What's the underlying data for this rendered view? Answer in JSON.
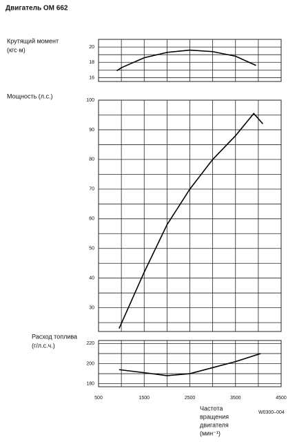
{
  "title": "Двигатель ОМ 662",
  "code": "W0300–004",
  "chart_data": [
    {
      "type": "line",
      "ylabel": "Крутящий момент",
      "yunit": "(кгс·м)",
      "xlim": [
        500,
        4500
      ],
      "ylim": [
        15.5,
        21
      ],
      "yticks": [
        16,
        18,
        20
      ],
      "minor_yticks": [
        17,
        19
      ],
      "series": [
        {
          "name": "Крутящий момент",
          "color": "#000000",
          "x": [
            900,
            1000,
            1500,
            2000,
            2500,
            3000,
            3500,
            3950
          ],
          "values": [
            16.9,
            17.3,
            18.6,
            19.3,
            19.6,
            19.4,
            18.8,
            17.6
          ]
        }
      ]
    },
    {
      "type": "line",
      "ylabel": "Мощность (л.с.)",
      "xlim": [
        500,
        4500
      ],
      "ylim": [
        22,
        100
      ],
      "yticks": [
        30,
        40,
        50,
        60,
        70,
        80,
        90,
        100
      ],
      "minor_yticks": [
        25,
        35,
        45,
        55,
        65,
        75,
        85,
        95
      ],
      "series": [
        {
          "name": "Мощность",
          "color": "#000000",
          "x": [
            950,
            1500,
            2000,
            2500,
            3000,
            3500,
            3900,
            4100
          ],
          "values": [
            23,
            42,
            58,
            70,
            80,
            88,
            95.5,
            92
          ]
        }
      ]
    },
    {
      "type": "line",
      "ylabel": "Расход топлива",
      "yunit": "(г/л.с.ч.)",
      "xlabel": [
        "Частота",
        "вращения",
        "двигателя",
        "(мин⁻¹)"
      ],
      "xlim": [
        500,
        4500
      ],
      "ylim": [
        177,
        223
      ],
      "yticks": [
        180,
        200,
        220
      ],
      "minor_yticks": [
        190,
        210
      ],
      "xticks": [
        500,
        1500,
        2500,
        3500,
        4500
      ],
      "minor_xticks": [
        1000,
        2000,
        3000,
        4000
      ],
      "series": [
        {
          "name": "Расход топлива",
          "color": "#000000",
          "x": [
            950,
            1500,
            2000,
            2500,
            3000,
            3500,
            4050
          ],
          "values": [
            194,
            191,
            188,
            190,
            196,
            202,
            210
          ]
        }
      ]
    }
  ]
}
